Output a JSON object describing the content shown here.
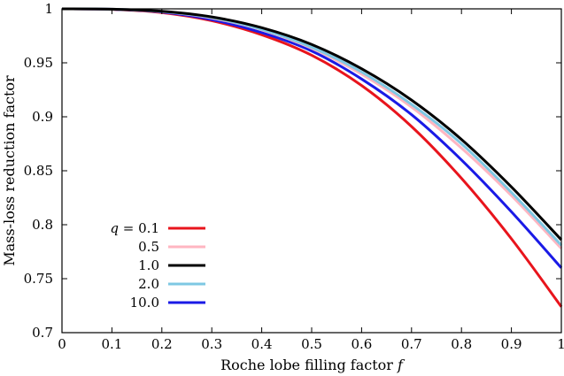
{
  "chart_data": {
    "type": "line",
    "title": "",
    "xlabel": "Roche lobe filling factor",
    "xlabel_symbol": "f",
    "ylabel": "Mass-loss reduction factor",
    "xlim": [
      0,
      1
    ],
    "ylim": [
      0.7,
      1
    ],
    "grid": false,
    "legend_position": "bottom-left",
    "x_ticks": [
      "0",
      "0.1",
      "0.2",
      "0.3",
      "0.4",
      "0.5",
      "0.6",
      "0.7",
      "0.8",
      "0.9",
      "1"
    ],
    "y_ticks": [
      "0.7",
      "0.75",
      "0.8",
      "0.85",
      "0.9",
      "0.95",
      "1"
    ],
    "x": [
      0,
      0.1,
      0.2,
      0.3,
      0.4,
      0.5,
      0.6,
      0.7,
      0.8,
      0.9,
      1.0
    ],
    "series": [
      {
        "name": "q = 0.1",
        "legend_prefix": "q",
        "legend_value": "= 0.1",
        "color": "#e8141c",
        "values": [
          1.0,
          0.9995,
          0.9965,
          0.989,
          0.976,
          0.957,
          0.929,
          0.891,
          0.843,
          0.787,
          0.724
        ]
      },
      {
        "name": "0.5",
        "legend_value": "0.5",
        "color": "#ffb6c1",
        "values": [
          1.0,
          0.9997,
          0.9974,
          0.9915,
          0.9805,
          0.9635,
          0.9395,
          0.909,
          0.871,
          0.827,
          0.778
        ]
      },
      {
        "name": "1.0",
        "legend_value": "1.0",
        "color": "#000000",
        "values": [
          1.0,
          0.9997,
          0.9977,
          0.9925,
          0.9825,
          0.967,
          0.9445,
          0.9155,
          0.879,
          0.835,
          0.786
        ]
      },
      {
        "name": "2.0",
        "legend_value": "2.0",
        "color": "#7ec8e3",
        "values": [
          1.0,
          0.9997,
          0.9975,
          0.992,
          0.981,
          0.9645,
          0.9415,
          0.9115,
          0.875,
          0.83,
          0.781
        ]
      },
      {
        "name": "10.0",
        "legend_value": "10.0",
        "color": "#1a1ae6",
        "values": [
          1.0,
          0.9996,
          0.997,
          0.99,
          0.978,
          0.961,
          0.935,
          0.902,
          0.86,
          0.812,
          0.76
        ]
      }
    ]
  }
}
